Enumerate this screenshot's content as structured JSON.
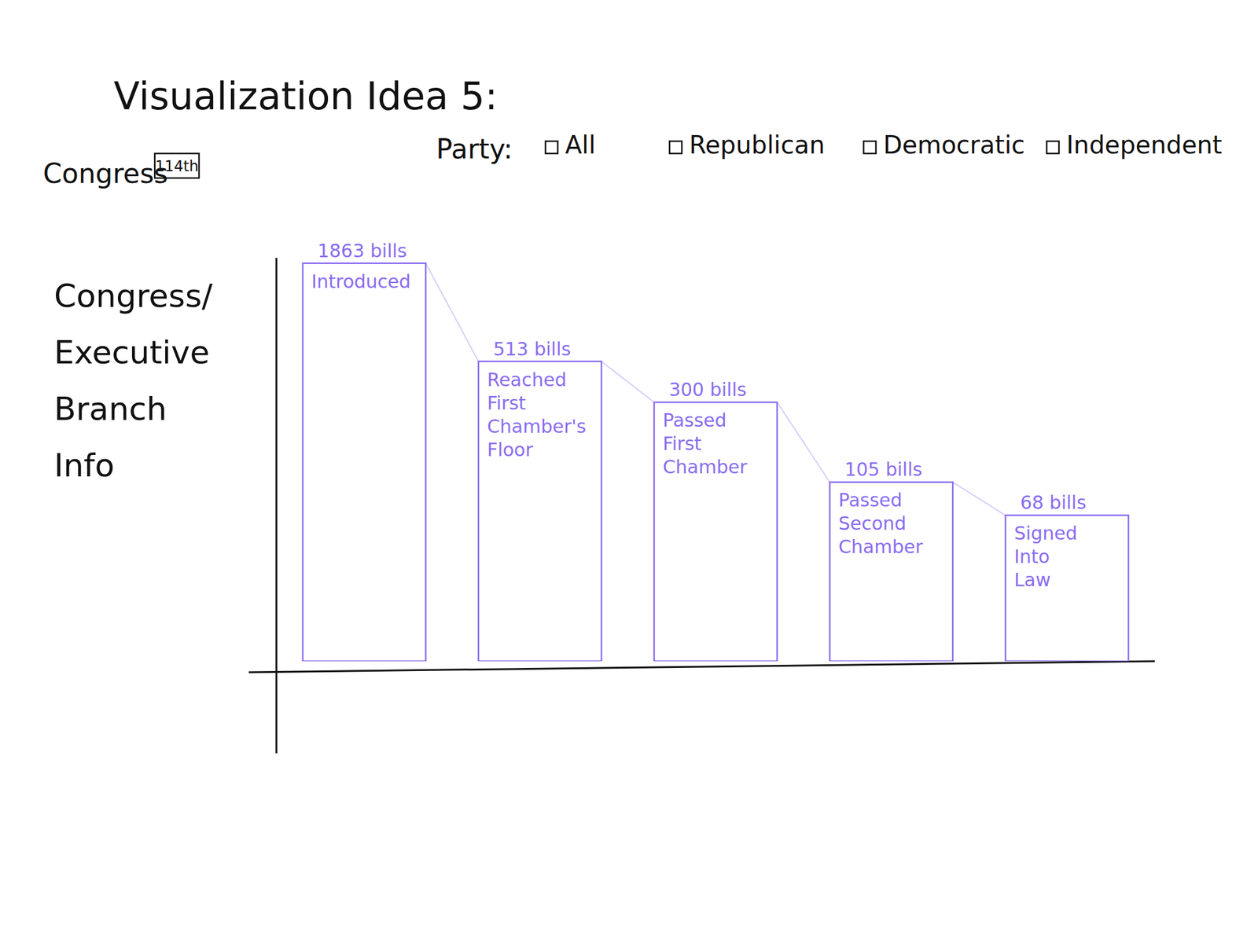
{
  "heading": {
    "title": "Visualization Idea 5:"
  },
  "controls": {
    "congress_label": "Congress",
    "congress_value": "114th",
    "party_label": "Party:",
    "party_options": [
      "All",
      "Republican",
      "Democratic",
      "Independent"
    ]
  },
  "side_panel": {
    "text": "Congress/ Executive Branch Info"
  },
  "chart_data": {
    "type": "bar",
    "categories": [
      "Introduced",
      "Reached First Chamber's Floor",
      "Passed First Chamber",
      "Passed Second Chamber",
      "Signed Into Law"
    ],
    "values": [
      1863,
      513,
      300,
      105,
      68
    ],
    "value_labels": [
      "1863 bills",
      "513 bills",
      "300 bills",
      "105 bills",
      "68 bills"
    ],
    "color": "#8a6cf0",
    "data_labels": true,
    "log": "y",
    "ylim": [
      10,
      2000
    ],
    "tick_labels": false,
    "grid": false
  }
}
